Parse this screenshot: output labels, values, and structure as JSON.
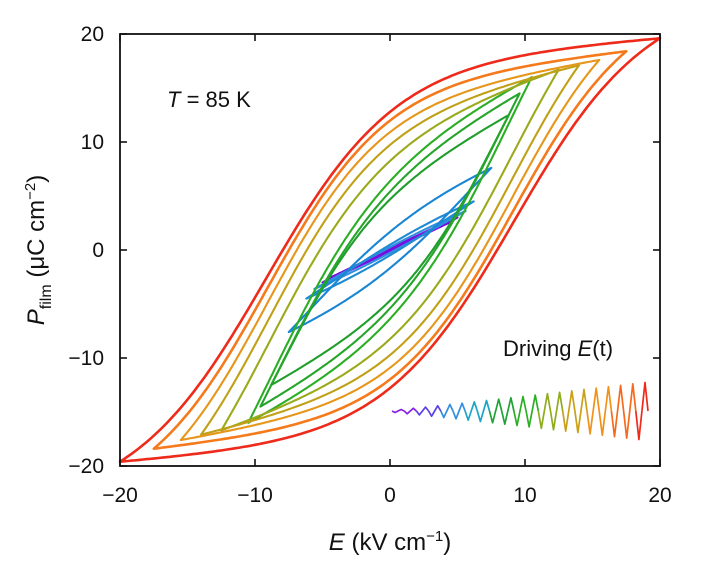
{
  "chart_data": {
    "type": "line",
    "title": "",
    "xlabel": {
      "symbol": "E",
      "unit_open": " (kV cm",
      "unit_sup": "−1",
      "unit_close": ")"
    },
    "ylabel": {
      "symbol": "P",
      "sub": "film",
      "unit_open": " (μC cm",
      "unit_sup": "−2",
      "unit_close": ")"
    },
    "xlim": [
      -20,
      20
    ],
    "ylim": [
      -20,
      20
    ],
    "xticks": [
      -20,
      -10,
      0,
      10,
      20
    ],
    "yticks": [
      -20,
      -10,
      0,
      10,
      20
    ],
    "xtick_labels": [
      "−20",
      "−10",
      "0",
      "10",
      "20"
    ],
    "ytick_labels": [
      "−20",
      "−10",
      "0",
      "10",
      "20"
    ],
    "grid": false,
    "legend": "none",
    "annotations": {
      "temperature": {
        "symbol": "T",
        "text": " = 85 K"
      },
      "driving": {
        "prefix": "Driving ",
        "symbol": "E",
        "suffix": "(t)"
      }
    },
    "loops": [
      {
        "Emax": 4.5,
        "Pmax": 2.6,
        "Pr": 0.6,
        "Ec": 3.0,
        "color": "#6a00d8"
      },
      {
        "Emax": 5.0,
        "Pmax": 3.0,
        "Pr": 0.8,
        "Ec": 3.2,
        "color": "#7a10e0"
      },
      {
        "Emax": 5.6,
        "Pmax": 3.6,
        "Pr": 1.2,
        "Ec": 3.6,
        "color": "#2f8fe0"
      },
      {
        "Emax": 6.2,
        "Pmax": 4.5,
        "Pr": 1.8,
        "Ec": 4.2,
        "color": "#1e8ad6"
      },
      {
        "Emax": 7.5,
        "Pmax": 7.6,
        "Pr": 4.5,
        "Ec": 6.0,
        "color": "#1a86d3"
      },
      {
        "Emax": 8.8,
        "Pmax": 12.5,
        "Pr": 10.3,
        "Ec": 8.2,
        "color": "#1f9e2c"
      },
      {
        "Emax": 9.6,
        "Pmax": 14.5,
        "Pr": 11.5,
        "Ec": 8.5,
        "color": "#25a52a"
      },
      {
        "Emax": 10.5,
        "Pmax": 16.0,
        "Pr": 12.6,
        "Ec": 8.8,
        "color": "#2bae24"
      },
      {
        "Emax": 12.5,
        "Pmax": 16.7,
        "Pr": 13.2,
        "Ec": 9.0,
        "color": "#9aaa1c"
      },
      {
        "Emax": 14.0,
        "Pmax": 17.1,
        "Pr": 13.6,
        "Ec": 9.0,
        "color": "#c0a017"
      },
      {
        "Emax": 15.5,
        "Pmax": 17.6,
        "Pr": 14.0,
        "Ec": 9.1,
        "color": "#e6961a"
      },
      {
        "Emax": 17.5,
        "Pmax": 18.4,
        "Pr": 14.3,
        "Ec": 9.1,
        "color": "#f57a1c"
      },
      {
        "Emax": 20.0,
        "Pmax": 19.6,
        "Pr": 14.6,
        "Ec": 9.2,
        "color": "#ee2a1a"
      }
    ],
    "driving_waveform": {
      "cycles": 21,
      "amplitude_growth": "increasing",
      "colors": [
        "#8a1de8",
        "#5a3ee6",
        "#2f8fe0",
        "#1aa5c8",
        "#1fa336",
        "#2bae24",
        "#8fac1c",
        "#c9a017",
        "#f0921a",
        "#f56a1c",
        "#ee2a1a"
      ]
    }
  }
}
